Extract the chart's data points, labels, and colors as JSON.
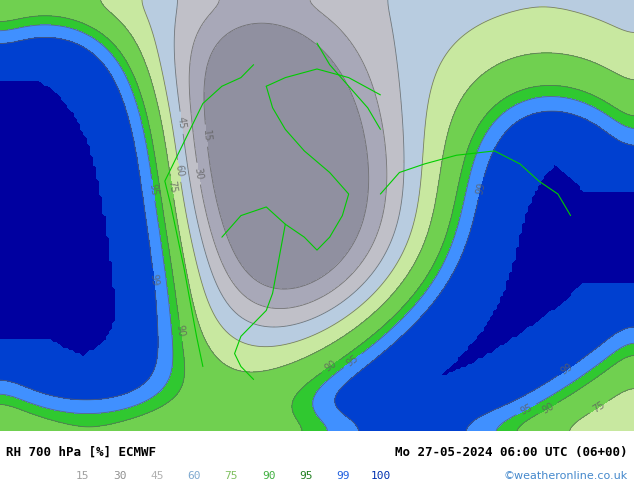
{
  "title_left": "RH 700 hPa [%] ECMWF",
  "title_right": "Mo 27-05-2024 06:00 UTC (06+00)",
  "watermark": "©weatheronline.co.uk",
  "colorbar_levels": [
    15,
    30,
    45,
    60,
    75,
    90,
    95,
    99,
    100
  ],
  "colorbar_colors": [
    "#e0e0e0",
    "#c8c8c8",
    "#b0b0b0",
    "#90c8f0",
    "#60b040",
    "#40e040",
    "#20c020",
    "#0080ff",
    "#0000e0"
  ],
  "contour_color": "#606060",
  "coastline_color": "#00cc00",
  "background_color": "#ffffff",
  "figsize": [
    6.34,
    4.9
  ],
  "dpi": 100
}
